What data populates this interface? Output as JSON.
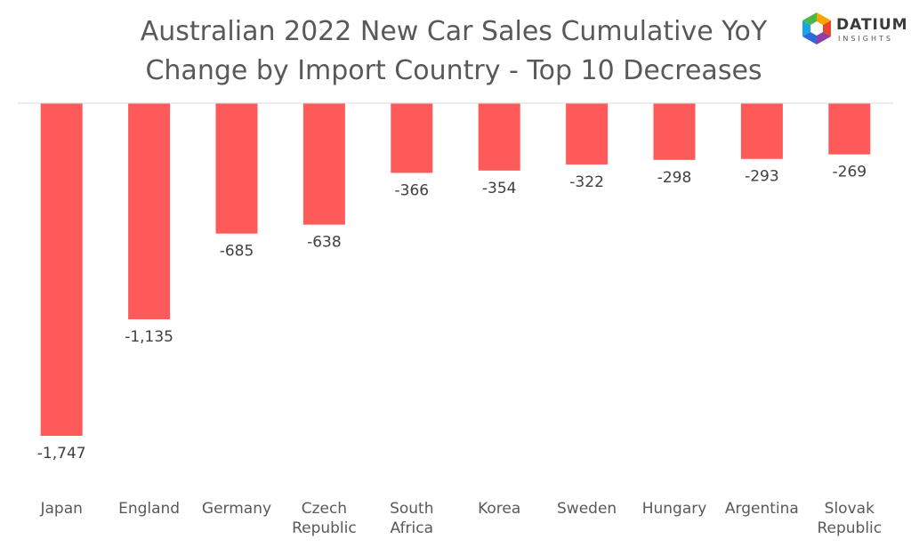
{
  "chart_data": {
    "type": "bar",
    "title_lines": [
      "Australian 2022 New Car Sales Cumulative YoY",
      "Change by Import Country - Top 10 Decreases"
    ],
    "categories": [
      "Japan",
      "England",
      "Germany",
      "Czech Republic",
      "South Africa",
      "Korea",
      "Sweden",
      "Hungary",
      "Argentina",
      "Slovak Republic"
    ],
    "category_lines": [
      [
        "Japan"
      ],
      [
        "England"
      ],
      [
        "Germany"
      ],
      [
        "Czech",
        "Republic"
      ],
      [
        "South",
        "Africa"
      ],
      [
        "Korea"
      ],
      [
        "Sweden"
      ],
      [
        "Hungary"
      ],
      [
        "Argentina"
      ],
      [
        "Slovak",
        "Republic"
      ]
    ],
    "values": [
      -1747,
      -1135,
      -685,
      -638,
      -366,
      -354,
      -322,
      -298,
      -293,
      -269
    ],
    "value_labels": [
      "-1,747",
      "-1,135",
      "-685",
      "-638",
      "-366",
      "-354",
      "-322",
      "-298",
      "-293",
      "-269"
    ],
    "bar_color": "#FF5A5A",
    "ylim": [
      -1747,
      0
    ],
    "grid": false,
    "legend": "none"
  },
  "logo": {
    "brand": "DATIUM",
    "sub": "INSIGHTS"
  }
}
